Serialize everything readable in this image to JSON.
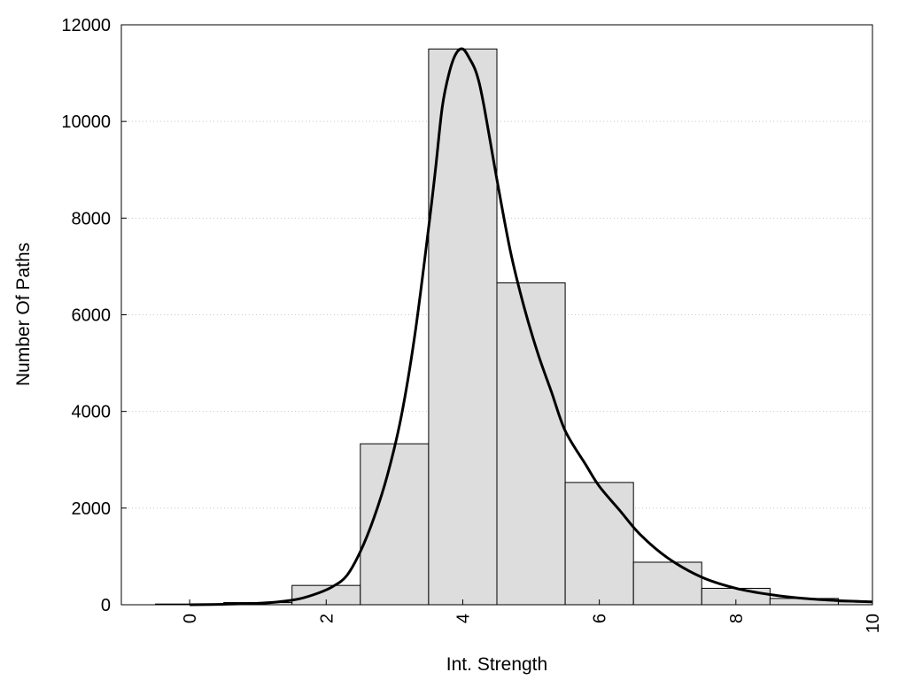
{
  "chart_data": {
    "type": "bar",
    "title": "",
    "xlabel": "Int. Strength",
    "ylabel": "Number Of Paths",
    "xlim": [
      -1,
      10
    ],
    "ylim": [
      0,
      12000
    ],
    "grid": "horizontal-dotted",
    "x_ticks": [
      0,
      2,
      4,
      6,
      8,
      10
    ],
    "y_ticks": [
      0,
      2000,
      4000,
      6000,
      8000,
      10000,
      12000
    ],
    "bar_width": 1,
    "bars": [
      {
        "x": 0,
        "value": 15
      },
      {
        "x": 1,
        "value": 45
      },
      {
        "x": 2,
        "value": 400
      },
      {
        "x": 3,
        "value": 3330
      },
      {
        "x": 4,
        "value": 11500
      },
      {
        "x": 5,
        "value": 6660
      },
      {
        "x": 6,
        "value": 2530
      },
      {
        "x": 7,
        "value": 880
      },
      {
        "x": 8,
        "value": 340
      },
      {
        "x": 9,
        "value": 130
      },
      {
        "x": 10,
        "value": 60
      }
    ],
    "curve": {
      "x": [
        0,
        0.5,
        1,
        1.3,
        1.6,
        1.9,
        2.1,
        2.3,
        2.5,
        2.7,
        2.9,
        3.1,
        3.3,
        3.5,
        3.6,
        3.7,
        3.8,
        3.9,
        4.0,
        4.1,
        4.2,
        4.3,
        4.5,
        4.7,
        4.9,
        5.1,
        5.3,
        5.5,
        5.8,
        6.0,
        6.3,
        6.6,
        7.0,
        7.5,
        8.0,
        8.5,
        9.0,
        9.5,
        10.0
      ],
      "y": [
        0,
        10,
        30,
        60,
        120,
        250,
        380,
        600,
        1100,
        1800,
        2700,
        3900,
        5600,
        7800,
        9000,
        10300,
        11000,
        11400,
        11500,
        11300,
        11000,
        10400,
        8800,
        7300,
        6150,
        5200,
        4400,
        3600,
        2900,
        2450,
        1950,
        1450,
        970,
        570,
        340,
        210,
        130,
        85,
        60
      ]
    }
  }
}
